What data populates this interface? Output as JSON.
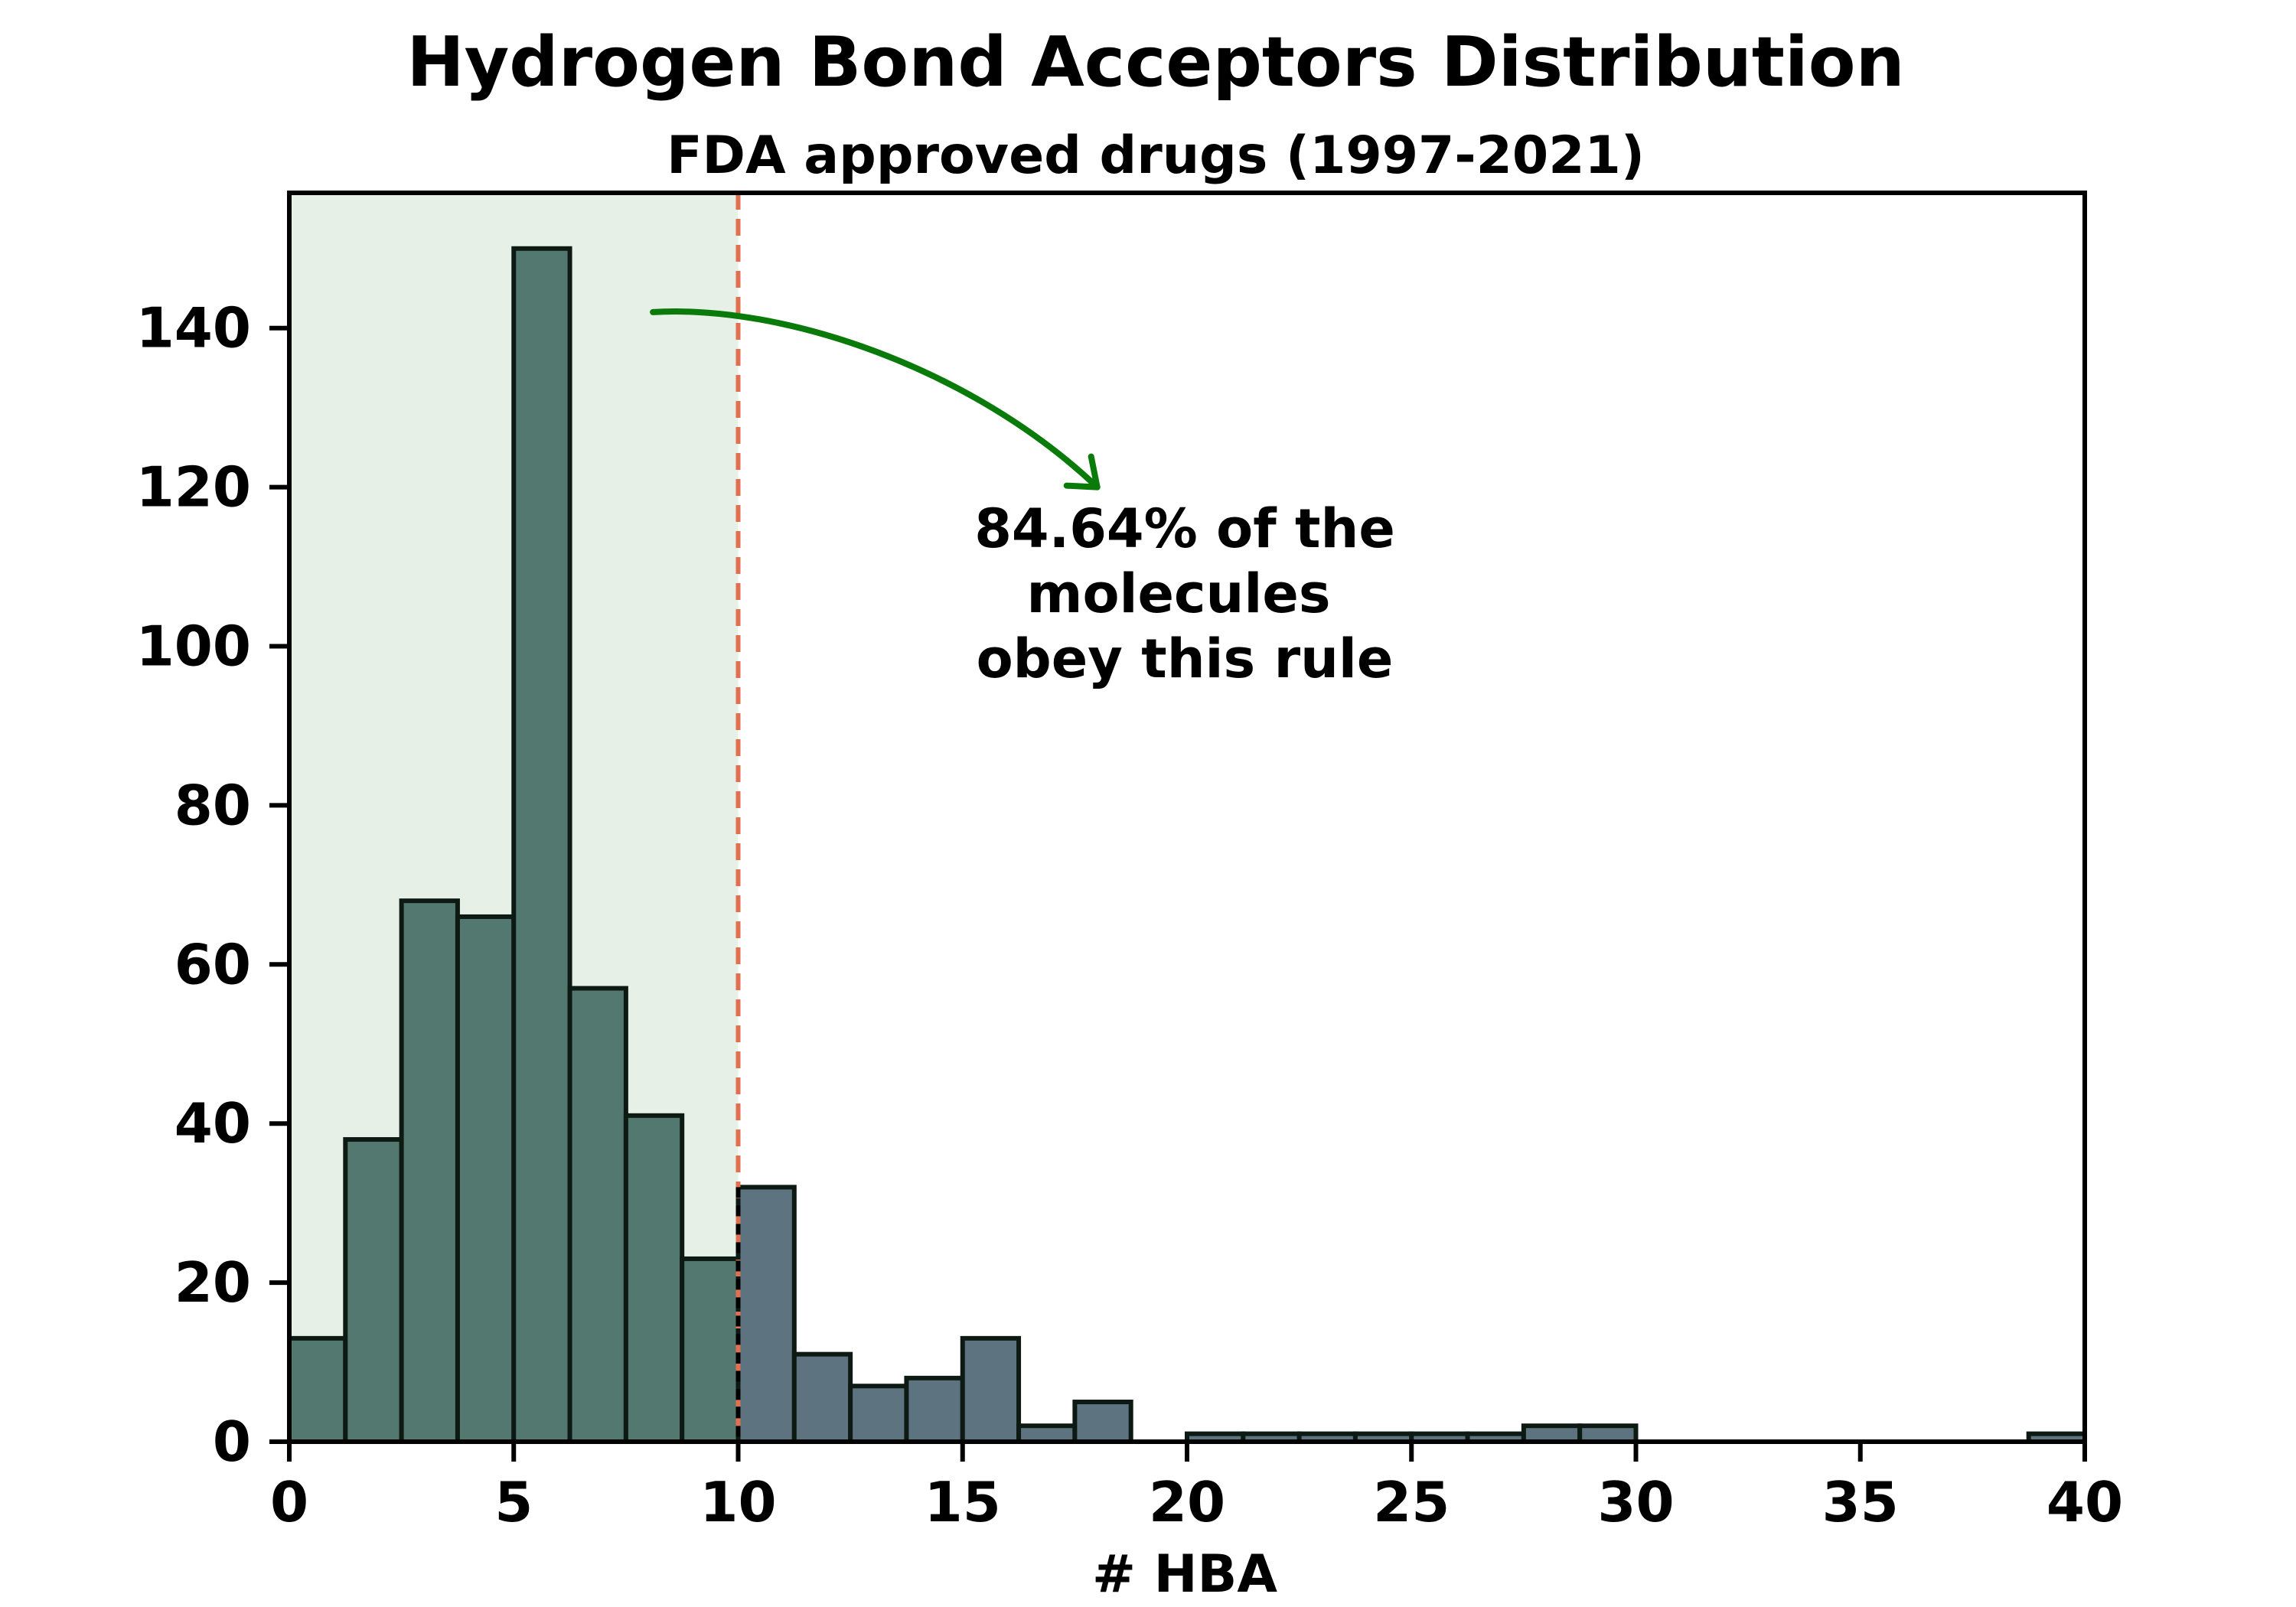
{
  "chart_data": {
    "type": "bar",
    "title": "Hydrogen Bond Acceptors Distribution",
    "subtitle": "FDA approved drugs (1997-2021)",
    "xlabel": "# HBA",
    "ylabel": "",
    "xlim": [
      0,
      40
    ],
    "ylim": [
      0,
      157
    ],
    "xticks": [
      0,
      5,
      10,
      15,
      20,
      25,
      30,
      35,
      40
    ],
    "yticks": [
      0,
      20,
      40,
      60,
      80,
      100,
      120,
      140
    ],
    "bin_width": 1.25,
    "bin_start": 0,
    "values": [
      13,
      38,
      68,
      66,
      150,
      57,
      41,
      23,
      32,
      11,
      7,
      8,
      13,
      2,
      5,
      0,
      1,
      1,
      1,
      1,
      1,
      1,
      2,
      2,
      0,
      0,
      0,
      0,
      0,
      0,
      0,
      1
    ],
    "threshold": 10,
    "annotation": [
      "84.64% of the",
      "molecules",
      "obey this rule"
    ],
    "colors": {
      "bar_inside": "#537870",
      "bar_outside": "#5d7380",
      "bar_edge": "#0d1a14",
      "shade": "#e6f0e6",
      "threshold_line": "#e07050",
      "arrow": "#0a7a0a"
    }
  }
}
